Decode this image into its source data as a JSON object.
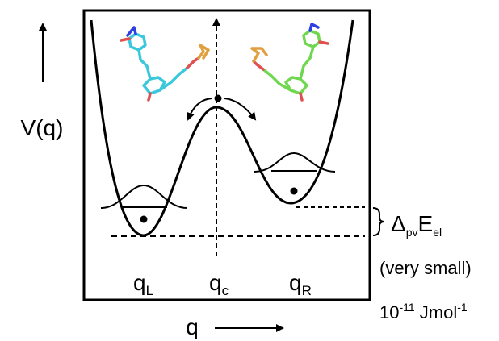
{
  "axes": {
    "y_label": "V(q)",
    "x_label": "q"
  },
  "positions": {
    "left": {
      "main": "q",
      "sub": "L"
    },
    "center": {
      "main": "q",
      "sub": "c"
    },
    "right": {
      "main": "q",
      "sub": "R"
    }
  },
  "energy": {
    "symbol": "Δ",
    "symbol_sub": "pv",
    "quantity": "E",
    "quantity_sub": "el",
    "note": "(very small)",
    "base": "10",
    "exponent": "-11",
    "unit": " Jmol",
    "unit_exponent": "-1"
  }
}
